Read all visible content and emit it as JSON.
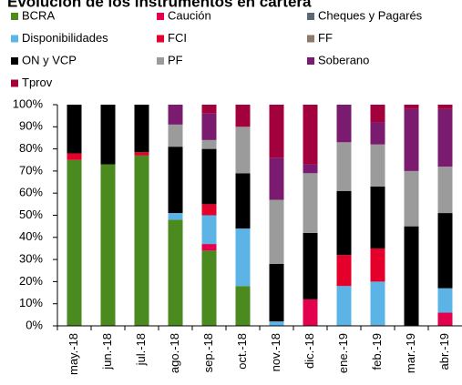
{
  "chart_data": {
    "type": "stacked_bar",
    "title": "Evolución de los instrumentos en cartera",
    "categories": [
      "may.-18",
      "jun.-18",
      "jul.-18",
      "ago.-18",
      "sep.-18",
      "oct.-18",
      "nov.-18",
      "dic.-18",
      "ene.-19",
      "feb.-19",
      "mar.-19",
      "abr.-19"
    ],
    "series": [
      {
        "name": "BCRA",
        "color": "#4a8a1e",
        "values": [
          75,
          73,
          77,
          48,
          34,
          18,
          0,
          0,
          0,
          0,
          0,
          0
        ]
      },
      {
        "name": "Caución",
        "color": "#e3004f",
        "values": [
          0,
          0,
          0,
          0,
          3,
          0,
          0,
          12,
          0,
          0,
          0,
          6
        ]
      },
      {
        "name": "Cheques y Pagarés",
        "color": "#5b6876",
        "values": [
          0,
          0,
          0,
          0,
          0,
          0,
          0,
          0,
          0,
          0,
          0,
          0
        ]
      },
      {
        "name": "Disponibilidades",
        "color": "#5cb4e6",
        "values": [
          0,
          0,
          0,
          3,
          13,
          26,
          2,
          0,
          18,
          20,
          0,
          11
        ]
      },
      {
        "name": "FCI",
        "color": "#e4002b",
        "values": [
          3,
          0,
          1.5,
          0,
          5,
          0,
          0,
          0,
          14,
          15,
          0,
          0
        ]
      },
      {
        "name": "FF",
        "color": "#8c7a6a",
        "values": [
          0,
          0,
          0,
          0,
          0,
          0,
          0,
          0,
          0,
          0,
          0,
          0
        ]
      },
      {
        "name": "ON y VCP",
        "color": "#000000",
        "values": [
          22,
          27,
          21.5,
          30,
          25,
          25,
          26,
          30,
          29,
          28,
          45,
          34
        ]
      },
      {
        "name": "PF",
        "color": "#9b9b9b",
        "values": [
          0,
          0,
          0,
          10,
          4,
          21,
          29,
          27,
          22,
          19,
          25,
          21
        ]
      },
      {
        "name": "Soberano",
        "color": "#7b1b6f",
        "values": [
          0,
          0,
          0,
          9,
          12,
          0,
          19,
          4,
          17,
          10,
          28,
          26
        ]
      },
      {
        "name": "Tprov",
        "color": "#a3003e",
        "values": [
          0,
          0,
          0,
          0,
          4,
          10,
          24,
          27,
          0,
          8,
          2,
          2
        ]
      }
    ],
    "ylim": [
      0,
      100
    ],
    "yticks": [
      {
        "value": 0,
        "label": "0%"
      },
      {
        "value": 10,
        "label": "10%"
      },
      {
        "value": 20,
        "label": "20%"
      },
      {
        "value": 30,
        "label": "30%"
      },
      {
        "value": 40,
        "label": "40%"
      },
      {
        "value": 50,
        "label": "50%"
      },
      {
        "value": 60,
        "label": "60%"
      },
      {
        "value": 70,
        "label": "70%"
      },
      {
        "value": 80,
        "label": "80%"
      },
      {
        "value": 90,
        "label": "90%"
      },
      {
        "value": 100,
        "label": "100%"
      }
    ]
  }
}
